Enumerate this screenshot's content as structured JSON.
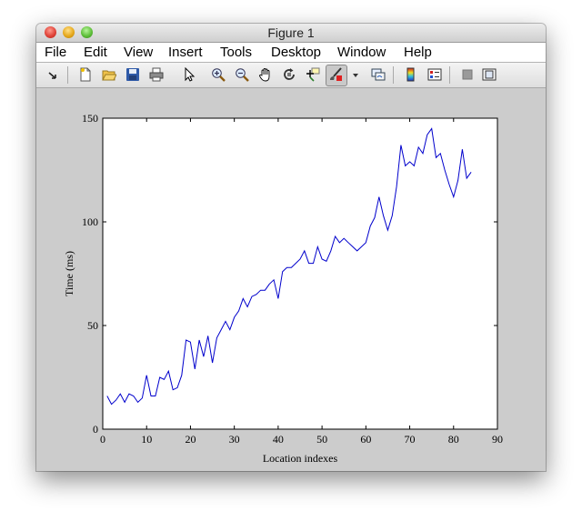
{
  "window": {
    "title": "Figure 1"
  },
  "menu": [
    "File",
    "Edit",
    "View",
    "Insert",
    "Tools",
    "Desktop",
    "Window",
    "Help"
  ],
  "toolbar": {
    "icons": [
      "dock-arrow-icon",
      "new-figure-icon",
      "open-file-icon",
      "save-icon",
      "print-icon",
      "select-arrow-icon",
      "zoom-in-icon",
      "zoom-out-icon",
      "pan-hand-icon",
      "rotate-3d-icon",
      "data-cursor-icon",
      "brush-icon",
      "brush-dropdown-icon",
      "link-plot-icon",
      "colorbar-icon",
      "legend-icon",
      "hide-plot-tools-icon",
      "show-plot-tools-icon"
    ]
  },
  "chart_data": {
    "type": "line",
    "title": "",
    "xlabel": "Location indexes",
    "ylabel": "Time (ms)",
    "xlim": [
      0,
      90
    ],
    "ylim": [
      0,
      150
    ],
    "xticks": [
      "0",
      "10",
      "20",
      "30",
      "40",
      "50",
      "60",
      "70",
      "80",
      "90"
    ],
    "yticks": [
      "0",
      "50",
      "100",
      "150"
    ],
    "grid": false,
    "line_color": "#0000cc",
    "series": [
      {
        "x": [
          1,
          2,
          3,
          4,
          5,
          6,
          7,
          8,
          9,
          10,
          11,
          12,
          13,
          14,
          15,
          16,
          17,
          18,
          19,
          20,
          21,
          22,
          23,
          24,
          25,
          26,
          27,
          28,
          29,
          30,
          31,
          32,
          33,
          34,
          35,
          36,
          37,
          38,
          39,
          40,
          41,
          42,
          43,
          44,
          45,
          46,
          47,
          48,
          49,
          50,
          51,
          52,
          53,
          54,
          55,
          56,
          57,
          58,
          59,
          60,
          61,
          62,
          63,
          64,
          65,
          66,
          67,
          68,
          69,
          70,
          71,
          72,
          73,
          74,
          75,
          76,
          77,
          78,
          79,
          80,
          81,
          82,
          83,
          84
        ],
        "y": [
          16,
          12,
          14,
          17,
          13,
          17,
          16,
          13,
          15,
          26,
          16,
          16,
          25,
          24,
          28,
          19,
          20,
          26,
          43,
          42,
          29,
          43,
          35,
          45,
          32,
          44,
          48,
          52,
          48,
          54,
          57,
          63,
          59,
          64,
          65,
          67,
          67,
          70,
          72,
          63,
          76,
          78,
          78,
          80,
          82,
          86,
          80,
          80,
          88,
          82,
          81,
          86,
          93,
          90,
          92,
          90,
          88,
          86,
          88,
          90,
          98,
          102,
          112,
          103,
          96,
          103,
          117,
          137,
          127,
          129,
          127,
          136,
          133,
          142,
          145,
          131,
          133,
          125,
          118,
          112,
          120,
          135,
          121,
          124
        ]
      }
    ]
  }
}
